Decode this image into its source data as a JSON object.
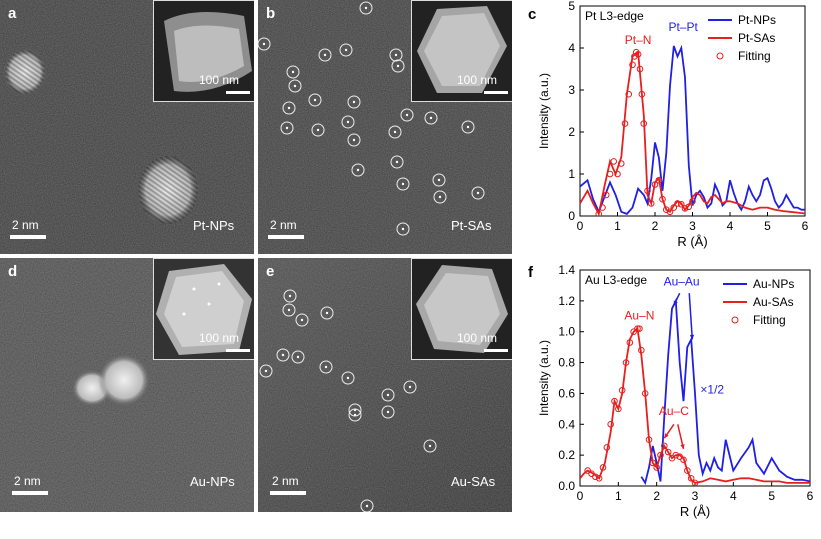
{
  "panels": {
    "a": {
      "label": "a",
      "tag": "Pt-NPs",
      "scale": "2 nm",
      "inset_scale": "100 nm"
    },
    "b": {
      "label": "b",
      "tag": "Pt-SAs",
      "scale": "2 nm",
      "inset_scale": "100 nm"
    },
    "c": {
      "label": "c"
    },
    "d": {
      "label": "d",
      "tag": "Au-NPs",
      "scale": "2 nm",
      "inset_scale": "100 nm"
    },
    "e": {
      "label": "e",
      "tag": "Au-SAs",
      "scale": "2 nm",
      "inset_scale": "100 nm"
    },
    "f": {
      "label": "f"
    }
  },
  "colors": {
    "blue": "#1f1fe6",
    "red": "#e61f1f"
  },
  "chart_data": [
    {
      "type": "line",
      "panel": "c",
      "title": "Pt L3-edge",
      "xlabel": "R (Å)",
      "ylabel": "Intensity (a.u.)",
      "xlim": [
        0,
        6
      ],
      "ylim": [
        0,
        5
      ],
      "xticks": [
        "0",
        "1",
        "2",
        "3",
        "4",
        "5",
        "6"
      ],
      "yticks": [
        "0",
        "1",
        "2",
        "3",
        "4",
        "5"
      ],
      "annotations": [
        {
          "text": "Pt–N",
          "x": 1.55,
          "y": 4.1,
          "color": "red"
        },
        {
          "text": "Pt–Pt",
          "x": 2.75,
          "y": 4.4,
          "color": "blue"
        }
      ],
      "series": [
        {
          "name": "Pt-NPs",
          "color": "blue",
          "style": "line",
          "x": [
            0,
            0.2,
            0.35,
            0.5,
            0.65,
            0.8,
            0.95,
            1.1,
            1.25,
            1.4,
            1.55,
            1.7,
            1.8,
            1.9,
            2.0,
            2.1,
            2.2,
            2.3,
            2.4,
            2.5,
            2.6,
            2.7,
            2.8,
            2.9,
            3.0,
            3.1,
            3.2,
            3.3,
            3.4,
            3.5,
            3.6,
            3.7,
            3.8,
            3.9,
            4.0,
            4.1,
            4.2,
            4.3,
            4.4,
            4.5,
            4.6,
            4.7,
            4.8,
            4.9,
            5.0,
            5.1,
            5.2,
            5.3,
            5.4,
            5.5,
            5.6,
            5.7,
            5.8,
            5.9,
            6.0
          ],
          "y": [
            0.7,
            0.85,
            0.4,
            0.1,
            0.45,
            0.8,
            0.5,
            0.1,
            0.05,
            0.2,
            0.65,
            0.5,
            0.3,
            0.9,
            1.75,
            1.4,
            0.6,
            1.5,
            3.1,
            4.05,
            3.8,
            4.0,
            3.3,
            1.2,
            0.25,
            0.5,
            0.6,
            0.45,
            0.2,
            0.3,
            0.75,
            0.55,
            0.25,
            0.35,
            0.85,
            0.55,
            0.3,
            0.15,
            0.35,
            0.7,
            0.5,
            0.35,
            0.5,
            0.85,
            0.9,
            0.65,
            0.35,
            0.2,
            0.3,
            0.5,
            0.35,
            0.2,
            0.2,
            0.15,
            0.15
          ]
        },
        {
          "name": "Pt-SAs",
          "color": "red",
          "style": "line",
          "x": [
            0,
            0.2,
            0.35,
            0.5,
            0.65,
            0.8,
            0.95,
            1.1,
            1.25,
            1.4,
            1.55,
            1.7,
            1.8,
            1.9,
            2.0,
            2.1,
            2.2,
            2.3,
            2.4,
            2.5,
            2.6,
            2.7,
            2.8,
            2.9,
            3.0,
            3.1,
            3.2,
            3.3,
            3.4,
            3.5,
            3.6,
            3.7,
            3.8,
            3.9,
            4.0,
            4.2,
            4.4,
            4.6,
            4.8,
            5.0,
            5.2,
            5.4,
            5.6,
            5.8,
            6.0
          ],
          "y": [
            0.3,
            0.6,
            0.3,
            0.05,
            0.7,
            1.3,
            1.0,
            1.4,
            2.9,
            3.8,
            3.9,
            2.4,
            0.5,
            0.3,
            0.8,
            0.9,
            0.4,
            0.15,
            0.1,
            0.25,
            0.35,
            0.3,
            0.15,
            0.25,
            0.45,
            0.55,
            0.5,
            0.35,
            0.3,
            0.45,
            0.5,
            0.4,
            0.3,
            0.35,
            0.35,
            0.3,
            0.2,
            0.15,
            0.2,
            0.2,
            0.15,
            0.12,
            0.1,
            0.08,
            0.06
          ]
        },
        {
          "name": "Fitting",
          "color": "red",
          "style": "circle",
          "x": [
            0.5,
            0.6,
            0.7,
            0.8,
            0.9,
            1.0,
            1.1,
            1.2,
            1.3,
            1.4,
            1.45,
            1.5,
            1.55,
            1.6,
            1.65,
            1.7,
            1.8,
            1.9,
            2.0,
            2.1,
            2.2,
            2.3,
            2.4,
            2.5,
            2.6,
            2.7,
            2.8,
            2.9,
            3.0
          ],
          "y": [
            0.05,
            0.2,
            0.5,
            1.0,
            1.3,
            1.0,
            1.25,
            2.2,
            2.9,
            3.6,
            3.8,
            3.9,
            3.85,
            3.5,
            2.9,
            2.2,
            0.6,
            0.3,
            0.75,
            0.85,
            0.4,
            0.15,
            0.1,
            0.2,
            0.3,
            0.28,
            0.18,
            0.22,
            0.35
          ]
        }
      ]
    },
    {
      "type": "line",
      "panel": "f",
      "title": "Au L3-edge",
      "xlabel": "R (Å)",
      "ylabel": "Intensity (a.u.)",
      "xlim": [
        0,
        6
      ],
      "ylim": [
        0,
        1.4
      ],
      "xticks": [
        "0",
        "1",
        "2",
        "3",
        "4",
        "5",
        "6"
      ],
      "yticks": [
        "0.0",
        "0.2",
        "0.4",
        "0.6",
        "0.8",
        "1.0",
        "1.2",
        "1.4"
      ],
      "annotations": [
        {
          "text": "Au–Au",
          "x": 2.65,
          "y": 1.3,
          "color": "blue"
        },
        {
          "text": "Au–N",
          "x": 1.55,
          "y": 1.08,
          "color": "red"
        },
        {
          "text": "Au–C",
          "x": 2.45,
          "y": 0.46,
          "color": "red"
        },
        {
          "text": "×1/2",
          "x": 3.45,
          "y": 0.6,
          "color": "blue"
        }
      ],
      "series": [
        {
          "name": "Au-NPs",
          "color": "blue",
          "style": "line",
          "x": [
            1.6,
            1.7,
            1.8,
            1.9,
            2.0,
            2.1,
            2.2,
            2.3,
            2.4,
            2.5,
            2.6,
            2.7,
            2.8,
            2.9,
            3.0,
            3.1,
            3.2,
            3.3,
            3.4,
            3.5,
            3.6,
            3.7,
            3.8,
            3.9,
            4.0,
            4.2,
            4.4,
            4.5,
            4.6,
            4.8,
            5.0,
            5.2,
            5.4,
            5.6,
            5.8,
            6.0
          ],
          "y": [
            0.06,
            0.02,
            0.12,
            0.26,
            0.15,
            0.03,
            0.45,
            0.85,
            1.15,
            1.2,
            0.8,
            0.55,
            0.9,
            0.95,
            0.6,
            0.2,
            0.08,
            0.15,
            0.1,
            0.18,
            0.12,
            0.1,
            0.3,
            0.2,
            0.1,
            0.18,
            0.25,
            0.3,
            0.15,
            0.08,
            0.18,
            0.1,
            0.06,
            0.04,
            0.04,
            0.03
          ]
        },
        {
          "name": "Au-SAs",
          "color": "red",
          "style": "line",
          "x": [
            0,
            0.1,
            0.2,
            0.35,
            0.5,
            0.65,
            0.8,
            0.9,
            1.0,
            1.1,
            1.2,
            1.3,
            1.4,
            1.5,
            1.6,
            1.7,
            1.8,
            1.9,
            2.0,
            2.1,
            2.2,
            2.3,
            2.4,
            2.5,
            2.6,
            2.7,
            2.8,
            2.9,
            3.0,
            3.2,
            3.4,
            3.6,
            3.8,
            4.0,
            4.2,
            4.4,
            4.6,
            4.8,
            5.0,
            5.2,
            5.4,
            5.6,
            5.8,
            6.0
          ],
          "y": [
            0.05,
            0.08,
            0.1,
            0.08,
            0.05,
            0.15,
            0.35,
            0.55,
            0.5,
            0.6,
            0.8,
            0.95,
            1.0,
            1.02,
            0.85,
            0.6,
            0.3,
            0.15,
            0.12,
            0.2,
            0.26,
            0.22,
            0.18,
            0.2,
            0.2,
            0.18,
            0.1,
            0.04,
            0.02,
            0.03,
            0.05,
            0.04,
            0.03,
            0.04,
            0.05,
            0.05,
            0.04,
            0.03,
            0.03,
            0.03,
            0.02,
            0.02,
            0.02,
            0.02
          ]
        },
        {
          "name": "Fitting",
          "color": "red",
          "style": "circle",
          "x": [
            0.2,
            0.3,
            0.4,
            0.5,
            0.6,
            0.7,
            0.8,
            0.9,
            1.0,
            1.1,
            1.2,
            1.3,
            1.4,
            1.5,
            1.55,
            1.6,
            1.7,
            1.8,
            1.9,
            2.0,
            2.1,
            2.2,
            2.3,
            2.4,
            2.5,
            2.6,
            2.7,
            2.8,
            2.9,
            3.0
          ],
          "y": [
            0.1,
            0.08,
            0.06,
            0.05,
            0.12,
            0.25,
            0.4,
            0.55,
            0.5,
            0.62,
            0.8,
            0.93,
            1.0,
            1.02,
            1.02,
            0.88,
            0.6,
            0.3,
            0.15,
            0.12,
            0.2,
            0.26,
            0.22,
            0.18,
            0.2,
            0.19,
            0.17,
            0.1,
            0.05,
            0.02
          ]
        }
      ]
    }
  ]
}
